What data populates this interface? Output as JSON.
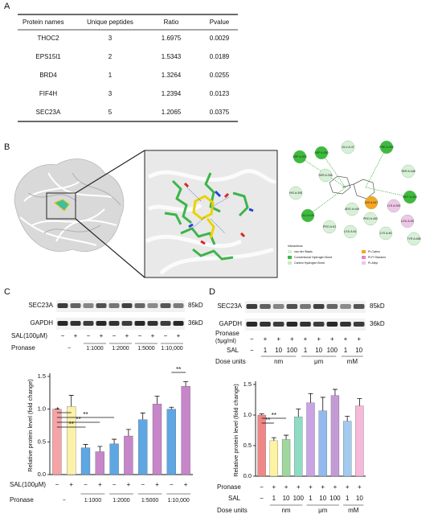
{
  "panel_labels": [
    "A",
    "B",
    "C",
    "D"
  ],
  "table": {
    "header": [
      "Protein names",
      "Unique peptides",
      "Ratio",
      "Pvalue"
    ],
    "rows": [
      [
        "THOC2",
        3,
        1.6975,
        0.0029
      ],
      [
        "EPS15l1",
        2,
        1.5343,
        0.0189
      ],
      [
        "BRD4",
        1,
        1.3264,
        0.0255
      ],
      [
        "FIF4H",
        3,
        1.2394,
        0.0123
      ],
      [
        "SEC23A",
        5,
        1.2065,
        0.0375
      ]
    ]
  },
  "panel_b": {
    "residues": [
      "GLU A:47",
      "ASP A:390",
      "ASP A:393",
      "SER A:396",
      "PHE A:399",
      "SER A:448",
      "HIS A:395",
      "ARG A:449",
      "HIS A:447",
      "LYS A:399",
      "PRO A:453",
      "MET A:400",
      "GLU A:49",
      "PRO A:51",
      "LEU A:51",
      "LYS A:46",
      "LEU A:45",
      "TYR A:485"
    ],
    "legend_title": "Interactions",
    "legend": [
      "van der Waals",
      "Conventional Hydrogen Bond",
      "Carbon Hydrogen Bond",
      "Pi-Cation",
      "Pi-Pi Stacked",
      "Pi-Alkyl"
    ]
  },
  "panel_c": {
    "blot": {
      "bands": [
        "SEC23A",
        "GAPDH"
      ],
      "sizes": [
        "85kD",
        "36kD"
      ],
      "sal_label": "SAL(100μM)",
      "sal": [
        "−",
        "+",
        "−",
        "+",
        "−",
        "+",
        "−",
        "+",
        "−",
        "+"
      ],
      "pronase_label": "Pronase",
      "pronase": [
        "−",
        "1:1000",
        "1:2000",
        "1:5000",
        "1:10,000"
      ]
    },
    "chart": {
      "type": "bar",
      "y_label": "Relative protein level (fold change)",
      "values": [
        1.0,
        1.04,
        0.41,
        0.35,
        0.47,
        0.59,
        0.84,
        1.08,
        1.0,
        1.35
      ],
      "errors": [
        0,
        0.17,
        0.05,
        0.08,
        0.07,
        0.1,
        0.1,
        0.12,
        0.03,
        0.07
      ],
      "colors": [
        "#f5a3a6",
        "#fbf1a8",
        "#5ea7e3",
        "#c686c9",
        "#5ea7e3",
        "#c686c9",
        "#5ea7e3",
        "#c686c9",
        "#5ea7e3",
        "#c686c9"
      ],
      "ylim": [
        0,
        1.5
      ],
      "yticks": [
        {
          "value": 0,
          "label": "0.0"
        },
        {
          "value": 0.5,
          "label": "0.5"
        },
        {
          "value": 1,
          "label": "1.0"
        },
        {
          "value": 1.5,
          "label": "1.5"
        }
      ],
      "significance": [
        "**",
        "**",
        "**",
        "*",
        "**"
      ]
    }
  },
  "panel_d": {
    "blot": {
      "bands": [
        "SEC23A",
        "GAPDH"
      ],
      "sizes": [
        "85kD",
        "36kD"
      ],
      "pronase_label": "Pronase",
      "pronase_unit": "(5μg/ml)",
      "pronase": [
        "−",
        "+",
        "+",
        "+",
        "+",
        "+",
        "+",
        "+",
        "+"
      ],
      "sal_label": "SAL",
      "sal": [
        "−",
        "1",
        "10",
        "100",
        "1",
        "10",
        "100",
        "1",
        "10"
      ],
      "units_label": "Dose units",
      "units": [
        "nm",
        "μm",
        "mM"
      ]
    },
    "chart": {
      "type": "bar",
      "y_label": "Relative protein level (fold change)",
      "values": [
        1.0,
        0.58,
        0.6,
        0.97,
        1.2,
        1.07,
        1.32,
        0.9,
        1.15
      ],
      "errors": [
        0.02,
        0.05,
        0.07,
        0.13,
        0.15,
        0.22,
        0.1,
        0.08,
        0.12
      ],
      "colors": [
        "#f08787",
        "#fdf3a0",
        "#9fd79f",
        "#8fdcc4",
        "#c9a3e3",
        "#93b9f0",
        "#c49ad6",
        "#a2cbf0",
        "#f7b9d9"
      ],
      "ylim": [
        0,
        1.5
      ],
      "yticks": [
        {
          "value": 0,
          "label": "0.0"
        },
        {
          "value": 0.5,
          "label": "0.5"
        },
        {
          "value": 1,
          "label": "1.0"
        },
        {
          "value": 1.5,
          "label": "1.5"
        }
      ],
      "significance": [
        "**",
        "**"
      ]
    }
  }
}
